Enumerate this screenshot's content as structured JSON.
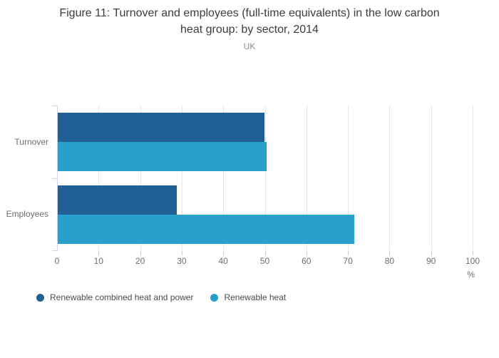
{
  "title": "Figure 11: Turnover and employees (full-time equivalents) in the low carbon heat group: by sector, 2014",
  "subtitle": "UK",
  "chart_data": {
    "type": "bar",
    "orientation": "horizontal",
    "title": "Figure 11: Turnover and employees (full-time equivalents) in the low carbon heat group: by sector, 2014",
    "subtitle": "UK",
    "categories": [
      "Turnover",
      "Employees"
    ],
    "series": [
      {
        "name": "Renewable combined heat and power",
        "color": "#206095",
        "values": [
          49.8,
          28.6
        ]
      },
      {
        "name": "Renewable heat",
        "color": "#27A0CC",
        "values": [
          50.2,
          71.4
        ]
      }
    ],
    "xlabel": "%",
    "ylabel": "",
    "xlim": [
      0,
      100
    ],
    "xticks": [
      0,
      10,
      20,
      30,
      40,
      50,
      60,
      70,
      80,
      90,
      100
    ],
    "grid": true,
    "legend_position": "bottom",
    "styles": {
      "gridline_color": "#e6e6e6",
      "axis_color": "#ccd6eb",
      "tick_color": "#cccccc",
      "label_color": "#6e6e6e"
    }
  }
}
